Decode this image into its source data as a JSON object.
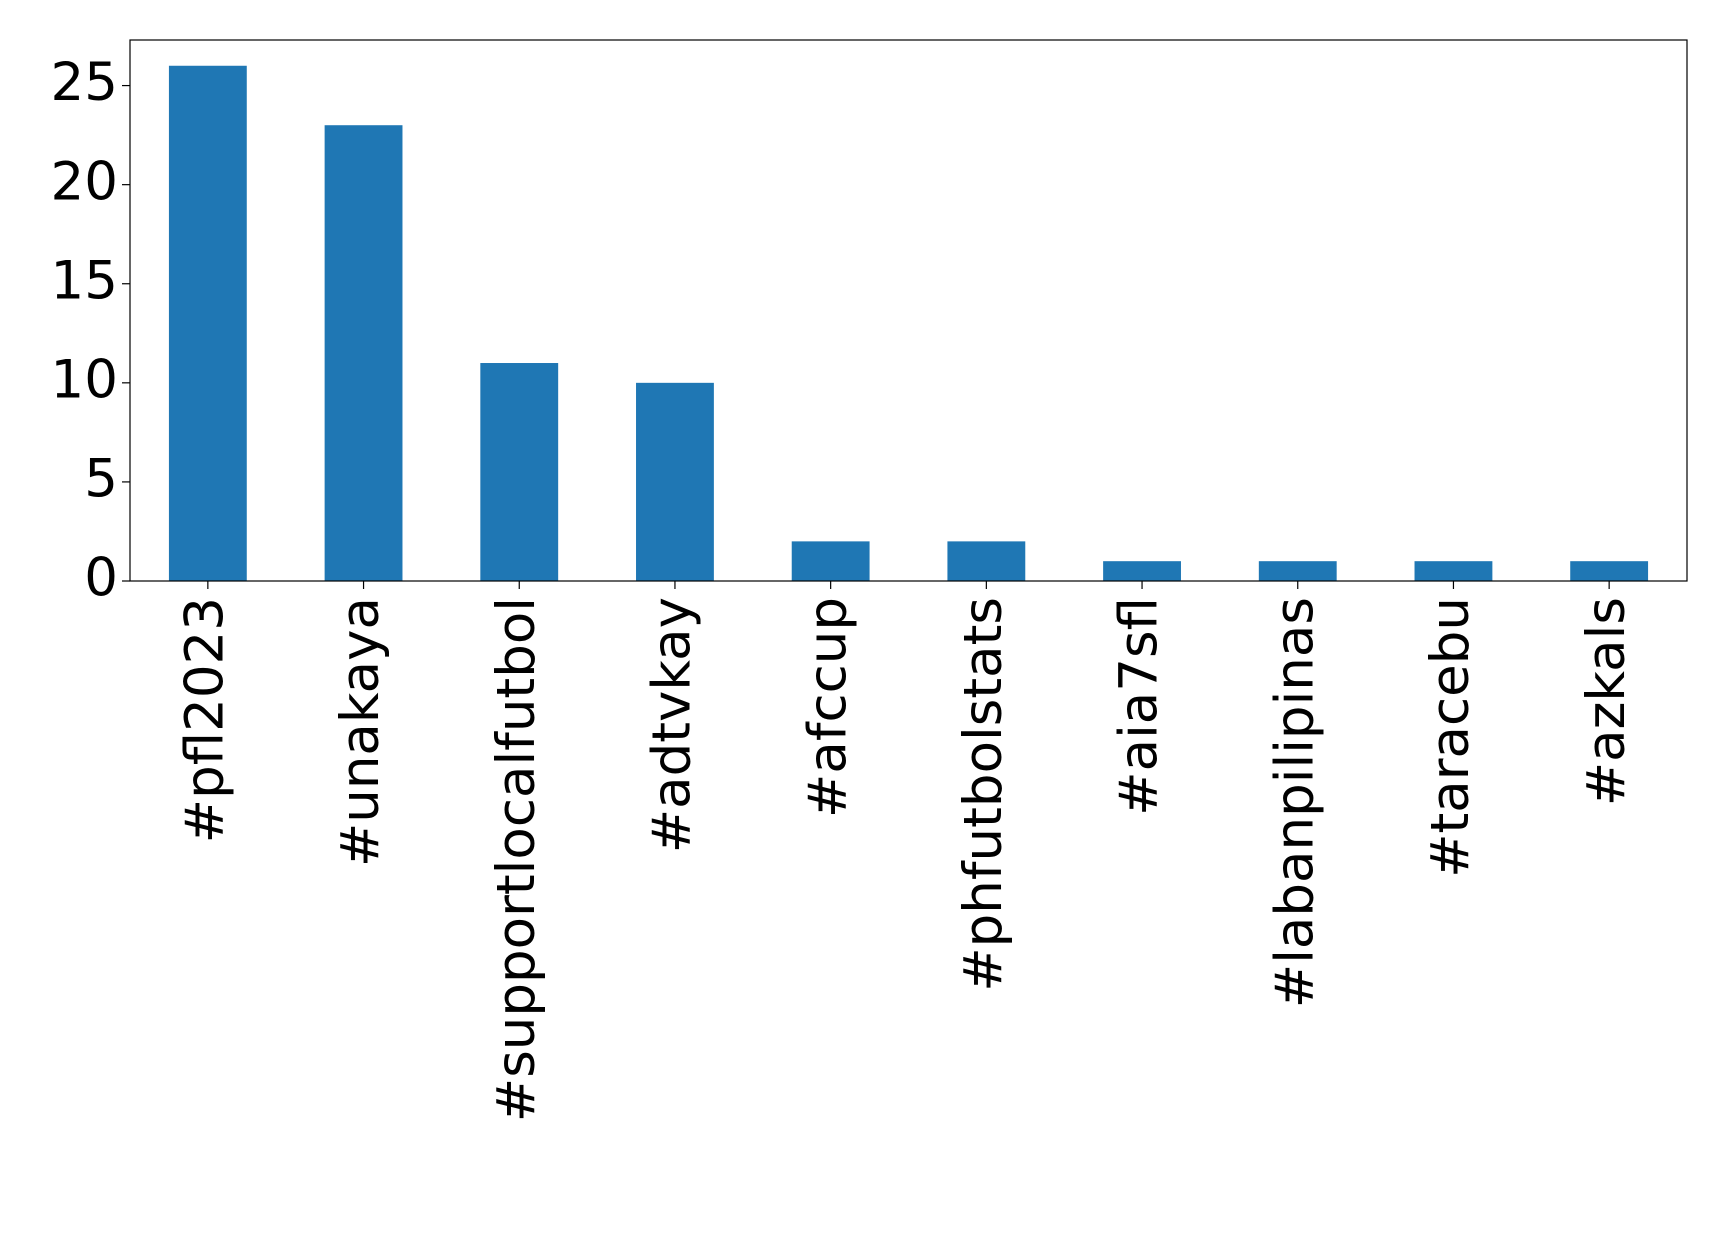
{
  "chart_data": {
    "type": "bar",
    "categories": [
      "#pfl2023",
      "#unakaya",
      "#supportlocalfutbol",
      "#adtvkay",
      "#afccup",
      "#phfutbolstats",
      "#aia7sfl",
      "#labanpilipinas",
      "#taracebu",
      "#azkals"
    ],
    "values": [
      26,
      23,
      11,
      10,
      2,
      2,
      1,
      1,
      1,
      1
    ],
    "color": "#1f77b4",
    "ylim": [
      0,
      27.3
    ],
    "yticks": [
      0,
      5,
      10,
      15,
      20,
      25
    ],
    "grid": false
  }
}
